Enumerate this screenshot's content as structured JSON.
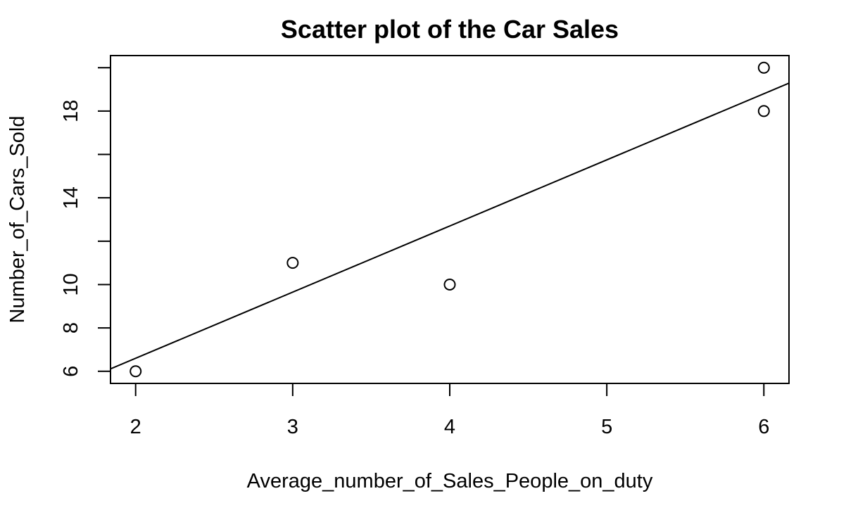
{
  "chart_data": {
    "type": "scatter",
    "title": "Scatter plot of the Car Sales",
    "xlabel": "Average_number_of_Sales_People_on_duty",
    "ylabel": "Number_of_Cars_Sold",
    "xlim": [
      1.84,
      6.16
    ],
    "ylim": [
      5.44,
      20.56
    ],
    "x_ticks": [
      2,
      3,
      4,
      5,
      6
    ],
    "y_ticks": [
      6,
      8,
      10,
      12,
      14,
      16,
      18,
      20
    ],
    "y_tick_labels": [
      "6",
      "8",
      "10",
      "",
      "14",
      "",
      "18",
      ""
    ],
    "series": [
      {
        "points": [
          {
            "x": 2,
            "y": 6
          },
          {
            "x": 3,
            "y": 11
          },
          {
            "x": 4,
            "y": 10
          },
          {
            "x": 6,
            "y": 18
          },
          {
            "x": 6,
            "y": 20
          }
        ]
      }
    ],
    "regression_line": {
      "intercept": 0.5,
      "slope": 3.05
    },
    "grid": false,
    "legend": "none",
    "colors": {
      "marker": "#000000",
      "line": "#000000"
    }
  }
}
